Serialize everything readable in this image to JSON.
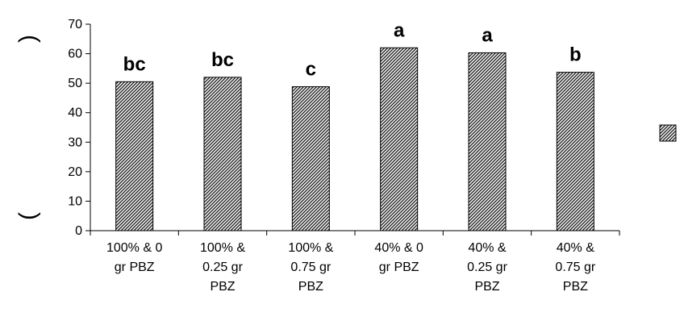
{
  "chart_data": {
    "type": "bar",
    "categories": [
      [
        "100% & 0",
        "gr PBZ"
      ],
      [
        "100% &",
        "0.25 gr",
        "PBZ"
      ],
      [
        "100% &",
        "0.75 gr",
        "PBZ"
      ],
      [
        "40% & 0",
        "gr PBZ"
      ],
      [
        "40% &",
        "0.25 gr",
        "PBZ"
      ],
      [
        "40% &",
        "0.75 gr",
        "PBZ"
      ]
    ],
    "values": [
      50.5,
      52,
      48.8,
      62,
      60.3,
      53.7
    ],
    "significance_letters": [
      "bc",
      "bc",
      "c",
      "a",
      "a",
      "b"
    ],
    "ylim": [
      0,
      70
    ],
    "yticks": [
      0,
      10,
      20,
      30,
      40,
      50,
      60,
      70
    ],
    "ylabel_fragments": [
      ")",
      "("
    ],
    "legend": {
      "placement": "right",
      "pattern": "diagonal-hatch"
    },
    "grid": false,
    "colors": {
      "hatch": "#000000",
      "fill": "#ffffff",
      "axis": "#000000"
    }
  }
}
